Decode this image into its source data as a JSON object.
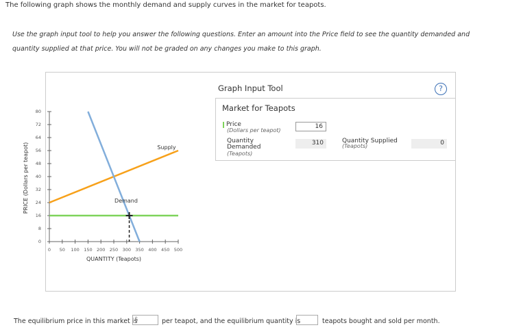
{
  "intro": "The following graph shows the monthly demand and supply curves in the market for teapots.",
  "instructions": "Use the graph input tool to help you answer the following questions. Enter an amount into the Price field to see the quantity demanded and quantity supplied at that price. You will not be graded on any changes you make to this graph.",
  "chart_data": {
    "type": "line",
    "x_label": "QUANTITY (Teapots)",
    "y_label": "PRICE (Dollars per teapot)",
    "xlim": [
      0,
      500
    ],
    "xticks": [
      0,
      50,
      100,
      150,
      200,
      250,
      300,
      350,
      400,
      450,
      500
    ],
    "ylim": [
      0,
      80
    ],
    "yticks": [
      0,
      8,
      16,
      24,
      32,
      40,
      48,
      56,
      64,
      72,
      80
    ],
    "series": [
      {
        "name": "Supply",
        "color": "#f7a11a",
        "x": [
          0,
          500
        ],
        "values": [
          24,
          56
        ]
      },
      {
        "name": "Demand",
        "color": "#82aedb",
        "x": [
          150,
          350
        ],
        "values": [
          80,
          0
        ]
      }
    ],
    "price_line_color": "#7ed35a"
  },
  "tool": {
    "title": "Graph Input Tool",
    "help": "?",
    "market": "Market for Teapots",
    "price_label": "Price",
    "price_unit": "(Dollars per teapot)",
    "price_value": 16,
    "qd_label": "Quantity Demanded",
    "qd_unit": "(Teapots)",
    "qd_value": 310,
    "qs_label": "Quantity Supplied",
    "qs_unit": "(Teapots)",
    "qs_value": 0
  },
  "question": {
    "part1": "The equilibrium price in this market is",
    "currency": "$",
    "part2": "per teapot, and the equilibrium quantity is",
    "part3": "teapots bought and sold per month."
  }
}
